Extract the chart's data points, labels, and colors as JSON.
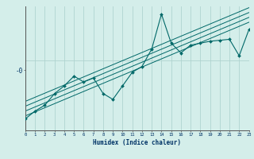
{
  "title": "",
  "xlabel": "Humidex (Indice chaleur)",
  "ylabel": "-0",
  "bg_color": "#d4eeea",
  "grid_color": "#b0d4d0",
  "line_color": "#006868",
  "marker_color": "#006868",
  "x_data": [
    0,
    1,
    2,
    3,
    4,
    5,
    6,
    7,
    8,
    9,
    10,
    11,
    12,
    13,
    14,
    15,
    16,
    17,
    18,
    19,
    20,
    21,
    22,
    23
  ],
  "y_scatter": [
    -3.0,
    -2.6,
    -2.3,
    -1.7,
    -1.3,
    -0.8,
    -1.1,
    -0.9,
    -1.7,
    -2.0,
    -1.3,
    -0.6,
    -0.3,
    0.6,
    2.4,
    0.9,
    0.4,
    0.8,
    0.9,
    1.0,
    1.05,
    1.1,
    0.25,
    1.6
  ],
  "regression_lines": [
    {
      "slope": 0.21,
      "intercept": -2.85
    },
    {
      "slope": 0.21,
      "intercept": -2.6
    },
    {
      "slope": 0.21,
      "intercept": -2.35
    },
    {
      "slope": 0.21,
      "intercept": -2.1
    }
  ],
  "xlim": [
    0,
    23
  ],
  "ylim": [
    -3.6,
    2.8
  ],
  "xticks": [
    0,
    1,
    2,
    3,
    4,
    5,
    6,
    7,
    8,
    9,
    10,
    11,
    12,
    13,
    14,
    15,
    16,
    17,
    18,
    19,
    20,
    21,
    22,
    23
  ],
  "ytick_val": -0.5,
  "ytick_label": "-0"
}
